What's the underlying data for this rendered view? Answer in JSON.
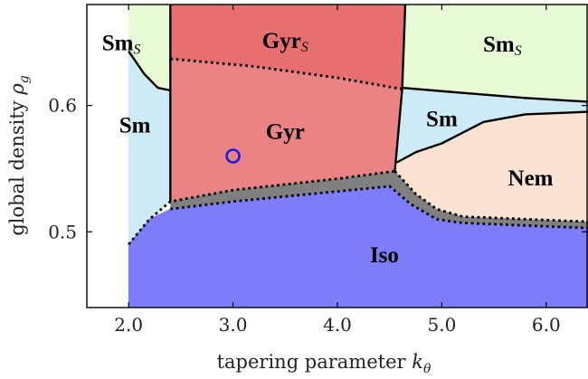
{
  "chart_data": {
    "type": "phase-diagram",
    "xlabel": "tapering parameter",
    "xlabel_symbol": "k",
    "xlabel_sub": "θ",
    "ylabel": "global density",
    "ylabel_symbol": "ρ",
    "ylabel_sub": "g",
    "xlim": [
      1.6,
      6.4
    ],
    "ylim": [
      0.44,
      0.68
    ],
    "x_ticks": [
      {
        "value": 2.0,
        "label": "2.0"
      },
      {
        "value": 3.0,
        "label": "3.0"
      },
      {
        "value": 4.0,
        "label": "4.0"
      },
      {
        "value": 5.0,
        "label": "5.0"
      },
      {
        "value": 6.0,
        "label": "6.0"
      }
    ],
    "y_ticks": [
      {
        "value": 0.5,
        "label": "0.5"
      },
      {
        "value": 0.6,
        "label": "0.6"
      }
    ],
    "colors": {
      "iso": "#7d7dfa",
      "gyr": "#ea8383",
      "gyr_s": "#e86f6f",
      "sm": "#ccebf6",
      "sm_s": "#e9fbd6",
      "nem": "#fae3d2",
      "coexistence": "#808080",
      "marker": "#1d1ddb"
    },
    "regions": [
      {
        "key": "sm_s_left",
        "label": "Sm",
        "sub": "S",
        "lx": 1.93,
        "ly": 0.648,
        "polygon": [
          [
            2.0,
            0.68
          ],
          [
            2.4,
            0.68
          ],
          [
            2.4,
            0.612
          ],
          [
            2.28,
            0.614
          ],
          [
            2.15,
            0.625
          ],
          [
            2.0,
            0.643
          ]
        ]
      },
      {
        "key": "sm_left",
        "label": "Sm",
        "sub": "",
        "lx": 2.06,
        "ly": 0.583,
        "polygon": [
          [
            2.0,
            0.643
          ],
          [
            2.15,
            0.625
          ],
          [
            2.28,
            0.614
          ],
          [
            2.4,
            0.612
          ],
          [
            2.4,
            0.524
          ],
          [
            2.2,
            0.51
          ],
          [
            2.0,
            0.49
          ]
        ]
      },
      {
        "key": "gyr_s",
        "label": "Gyr",
        "sub": "S",
        "lx": 3.5,
        "ly": 0.65,
        "polygon": [
          [
            2.4,
            0.68
          ],
          [
            4.65,
            0.68
          ],
          [
            4.62,
            0.613
          ],
          [
            4.0,
            0.622
          ],
          [
            3.2,
            0.631
          ],
          [
            2.4,
            0.637
          ]
        ]
      },
      {
        "key": "gyr",
        "label": "Gyr",
        "sub": "",
        "lx": 3.5,
        "ly": 0.578,
        "polygon": [
          [
            2.4,
            0.637
          ],
          [
            3.2,
            0.631
          ],
          [
            4.0,
            0.622
          ],
          [
            4.62,
            0.613
          ],
          [
            4.55,
            0.548
          ],
          [
            4.0,
            0.542
          ],
          [
            3.0,
            0.533
          ],
          [
            2.4,
            0.524
          ]
        ]
      },
      {
        "key": "sm_s_right",
        "label": "Sm",
        "sub": "S",
        "lx": 5.58,
        "ly": 0.647,
        "polygon": [
          [
            4.65,
            0.68
          ],
          [
            6.4,
            0.68
          ],
          [
            6.4,
            0.603
          ],
          [
            5.8,
            0.606
          ],
          [
            5.2,
            0.61
          ],
          [
            4.62,
            0.614
          ]
        ]
      },
      {
        "key": "sm_right",
        "label": "Sm",
        "sub": "",
        "lx": 5.0,
        "ly": 0.588,
        "polygon": [
          [
            4.62,
            0.614
          ],
          [
            5.2,
            0.61
          ],
          [
            5.8,
            0.606
          ],
          [
            6.4,
            0.603
          ],
          [
            6.4,
            0.595
          ],
          [
            5.8,
            0.593
          ],
          [
            5.4,
            0.587
          ],
          [
            5.0,
            0.57
          ],
          [
            4.75,
            0.563
          ],
          [
            4.57,
            0.555
          ]
        ]
      },
      {
        "key": "nem",
        "label": "Nem",
        "sub": "",
        "lx": 5.85,
        "ly": 0.541,
        "polygon": [
          [
            4.57,
            0.555
          ],
          [
            4.75,
            0.563
          ],
          [
            5.0,
            0.57
          ],
          [
            5.4,
            0.587
          ],
          [
            5.8,
            0.593
          ],
          [
            6.4,
            0.595
          ],
          [
            6.4,
            0.508
          ],
          [
            5.8,
            0.51
          ],
          [
            5.2,
            0.512
          ],
          [
            4.95,
            0.518
          ],
          [
            4.75,
            0.53
          ],
          [
            4.55,
            0.548
          ]
        ]
      },
      {
        "key": "iso",
        "label": "Iso",
        "sub": "",
        "lx": 4.45,
        "ly": 0.48,
        "polygon": [
          [
            2.0,
            0.49
          ],
          [
            2.2,
            0.51
          ],
          [
            2.4,
            0.518
          ],
          [
            3.0,
            0.524
          ],
          [
            4.0,
            0.532
          ],
          [
            4.5,
            0.536
          ],
          [
            4.7,
            0.522
          ],
          [
            4.95,
            0.51
          ],
          [
            5.2,
            0.507
          ],
          [
            5.8,
            0.505
          ],
          [
            6.4,
            0.503
          ],
          [
            6.4,
            0.44
          ],
          [
            2.0,
            0.44
          ]
        ]
      }
    ],
    "coexistence_band": {
      "upper": [
        [
          2.4,
          0.524
        ],
        [
          3.0,
          0.533
        ],
        [
          4.0,
          0.542
        ],
        [
          4.55,
          0.548
        ],
        [
          4.75,
          0.53
        ],
        [
          4.95,
          0.518
        ],
        [
          5.2,
          0.512
        ],
        [
          5.8,
          0.51
        ],
        [
          6.4,
          0.508
        ]
      ],
      "lower": [
        [
          2.4,
          0.518
        ],
        [
          3.0,
          0.524
        ],
        [
          4.0,
          0.532
        ],
        [
          4.5,
          0.536
        ],
        [
          4.7,
          0.522
        ],
        [
          4.95,
          0.51
        ],
        [
          5.2,
          0.507
        ],
        [
          5.8,
          0.505
        ],
        [
          6.4,
          0.503
        ]
      ]
    },
    "solid_boundaries": [
      [
        [
          2.0,
          0.643
        ],
        [
          2.15,
          0.625
        ],
        [
          2.28,
          0.614
        ],
        [
          2.4,
          0.612
        ]
      ],
      [
        [
          2.4,
          0.68
        ],
        [
          2.4,
          0.524
        ]
      ],
      [
        [
          4.65,
          0.68
        ],
        [
          4.62,
          0.613
        ],
        [
          4.55,
          0.548
        ]
      ],
      [
        [
          4.62,
          0.614
        ],
        [
          5.2,
          0.61
        ],
        [
          5.8,
          0.606
        ],
        [
          6.4,
          0.603
        ]
      ],
      [
        [
          4.57,
          0.555
        ],
        [
          4.75,
          0.563
        ],
        [
          5.0,
          0.57
        ],
        [
          5.4,
          0.587
        ],
        [
          5.8,
          0.593
        ],
        [
          6.4,
          0.595
        ]
      ]
    ],
    "dotted_boundaries": [
      [
        [
          2.4,
          0.637
        ],
        [
          3.2,
          0.631
        ],
        [
          4.0,
          0.622
        ],
        [
          4.62,
          0.613
        ]
      ],
      [
        [
          2.0,
          0.49
        ],
        [
          2.2,
          0.51
        ],
        [
          2.4,
          0.524
        ],
        [
          3.0,
          0.533
        ],
        [
          4.0,
          0.542
        ],
        [
          4.55,
          0.548
        ]
      ],
      [
        [
          2.4,
          0.518
        ],
        [
          3.0,
          0.524
        ],
        [
          4.0,
          0.532
        ],
        [
          4.5,
          0.536
        ],
        [
          4.7,
          0.522
        ],
        [
          4.95,
          0.51
        ],
        [
          5.2,
          0.507
        ],
        [
          5.8,
          0.505
        ],
        [
          6.4,
          0.503
        ]
      ],
      [
        [
          4.55,
          0.548
        ],
        [
          4.75,
          0.53
        ],
        [
          4.95,
          0.518
        ],
        [
          5.2,
          0.512
        ],
        [
          5.8,
          0.51
        ],
        [
          6.4,
          0.508
        ]
      ]
    ],
    "marker": {
      "x": 3.0,
      "y": 0.56
    }
  }
}
